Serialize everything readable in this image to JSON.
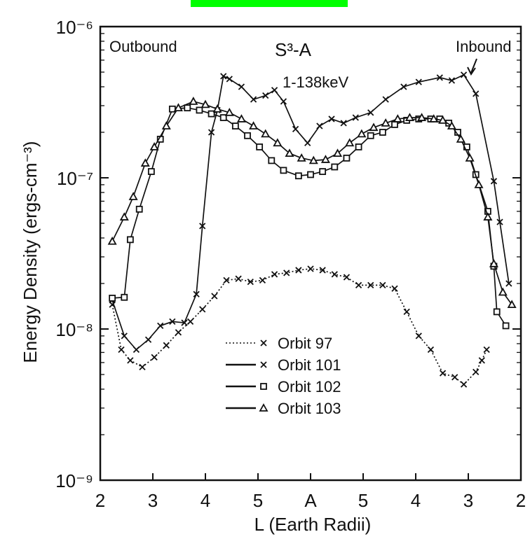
{
  "colors": {
    "top_bar": "#00ff00",
    "ink": "#111111"
  },
  "chart_data": {
    "type": "line",
    "title": "S³-A",
    "energy_range": "1-138keV",
    "xlabel": "L (Earth Radii)",
    "ylabel": "Energy Density (ergs-cm⁻³)",
    "x_scale": "position along orbit: outbound L 2→5, apogee A, inbound L 5→2",
    "xticks": [
      "2",
      "3",
      "4",
      "5",
      "A",
      "5",
      "4",
      "3",
      "2"
    ],
    "yscale": "log",
    "ylim": [
      1e-09,
      1e-06
    ],
    "yticks": [
      "10⁻⁹",
      "10⁻⁸",
      "10⁻⁷",
      "10⁻⁶"
    ],
    "annotations": {
      "outbound": "Outbound",
      "inbound": "Inbound"
    },
    "legend_position": "lower-middle",
    "series": [
      {
        "name": "Orbit 97",
        "marker": "x",
        "line": "dotted",
        "points": [
          [
            2.2,
            1.45e-08
          ],
          [
            2.35,
            7.3e-09
          ],
          [
            2.5,
            6.2e-09
          ],
          [
            2.7,
            5.6e-09
          ],
          [
            2.9,
            6.5e-09
          ],
          [
            3.1,
            7.8e-09
          ],
          [
            3.3,
            9.5e-09
          ],
          [
            3.5,
            1.12e-08
          ],
          [
            3.7,
            1.35e-08
          ],
          [
            3.9,
            1.65e-08
          ],
          [
            4.1,
            2.1e-08
          ],
          [
            4.3,
            2.15e-08
          ],
          [
            4.5,
            2.05e-08
          ],
          [
            4.7,
            2.1e-08
          ],
          [
            4.9,
            2.3e-08
          ],
          [
            5.1,
            2.35e-08
          ],
          [
            5.3,
            2.45e-08
          ],
          [
            5.5,
            2.5e-08
          ],
          [
            5.7,
            2.45e-08
          ],
          [
            5.9,
            2.3e-08
          ],
          [
            6.1,
            2.2e-08
          ],
          [
            6.3,
            1.95e-08
          ],
          [
            6.5,
            1.95e-08
          ],
          [
            6.7,
            1.95e-08
          ],
          [
            6.9,
            1.85e-08
          ],
          [
            7.1,
            1.3e-08
          ],
          [
            7.3,
            9e-09
          ],
          [
            7.5,
            7.3e-09
          ],
          [
            7.7,
            5.1e-09
          ],
          [
            7.9,
            4.8e-09
          ],
          [
            8.05,
            4.3e-09
          ],
          [
            8.25,
            5.2e-09
          ],
          [
            8.35,
            6.2e-09
          ],
          [
            8.43,
            7.3e-09
          ]
        ]
      },
      {
        "name": "Orbit 101",
        "marker": "x",
        "line": "solid",
        "points": [
          [
            2.2,
            1.55e-08
          ],
          [
            2.4,
            9e-09
          ],
          [
            2.6,
            7.3e-09
          ],
          [
            2.8,
            8.5e-09
          ],
          [
            3.0,
            1.05e-08
          ],
          [
            3.2,
            1.12e-08
          ],
          [
            3.4,
            1.1e-08
          ],
          [
            3.6,
            1.7e-08
          ],
          [
            3.7,
            4.8e-08
          ],
          [
            3.85,
            2e-07
          ],
          [
            3.95,
            2.8e-07
          ],
          [
            4.05,
            4.7e-07
          ],
          [
            4.15,
            4.5e-07
          ],
          [
            4.35,
            4e-07
          ],
          [
            4.55,
            3.3e-07
          ],
          [
            4.75,
            3.5e-07
          ],
          [
            4.9,
            3.8e-07
          ],
          [
            5.05,
            3.2e-07
          ],
          [
            5.25,
            2.1e-07
          ],
          [
            5.45,
            1.7e-07
          ],
          [
            5.65,
            2.2e-07
          ],
          [
            5.85,
            2.45e-07
          ],
          [
            6.05,
            2.3e-07
          ],
          [
            6.25,
            2.5e-07
          ],
          [
            6.5,
            2.7e-07
          ],
          [
            6.75,
            3.3e-07
          ],
          [
            7.05,
            4e-07
          ],
          [
            7.3,
            4.3e-07
          ],
          [
            7.65,
            4.6e-07
          ],
          [
            7.85,
            4.4e-07
          ],
          [
            8.05,
            4.8e-07
          ],
          [
            8.25,
            3.6e-07
          ],
          [
            8.55,
            9.5e-08
          ],
          [
            8.65,
            5.1e-08
          ],
          [
            8.8,
            2e-08
          ]
        ]
      },
      {
        "name": "Orbit 102",
        "marker": "square",
        "line": "solid",
        "points": [
          [
            2.2,
            1.6e-08
          ],
          [
            2.4,
            1.62e-08
          ],
          [
            2.5,
            3.9e-08
          ],
          [
            2.65,
            6.2e-08
          ],
          [
            2.85,
            1.1e-07
          ],
          [
            3.0,
            1.8e-07
          ],
          [
            3.2,
            2.85e-07
          ],
          [
            3.45,
            2.9e-07
          ],
          [
            3.65,
            2.8e-07
          ],
          [
            3.85,
            2.65e-07
          ],
          [
            4.05,
            2.5e-07
          ],
          [
            4.25,
            2.2e-07
          ],
          [
            4.45,
            1.9e-07
          ],
          [
            4.65,
            1.6e-07
          ],
          [
            4.85,
            1.3e-07
          ],
          [
            5.05,
            1.12e-07
          ],
          [
            5.3,
            1.03e-07
          ],
          [
            5.5,
            1.05e-07
          ],
          [
            5.7,
            1.1e-07
          ],
          [
            5.9,
            1.18e-07
          ],
          [
            6.1,
            1.35e-07
          ],
          [
            6.3,
            1.6e-07
          ],
          [
            6.5,
            1.9e-07
          ],
          [
            6.7,
            2e-07
          ],
          [
            6.9,
            2.25e-07
          ],
          [
            7.1,
            2.4e-07
          ],
          [
            7.3,
            2.45e-07
          ],
          [
            7.5,
            2.45e-07
          ],
          [
            7.65,
            2.45e-07
          ],
          [
            7.8,
            2.3e-07
          ],
          [
            7.95,
            2e-07
          ],
          [
            8.1,
            1.6e-07
          ],
          [
            8.25,
            1.05e-07
          ],
          [
            8.45,
            6e-08
          ],
          [
            8.55,
            2.6e-08
          ],
          [
            8.6,
            1.3e-08
          ],
          [
            8.75,
            1.05e-08
          ]
        ]
      },
      {
        "name": "Orbit 103",
        "marker": "triangle",
        "line": "solid",
        "points": [
          [
            2.2,
            3.8e-08
          ],
          [
            2.4,
            5.5e-08
          ],
          [
            2.55,
            7.5e-08
          ],
          [
            2.75,
            1.25e-07
          ],
          [
            2.9,
            1.6e-07
          ],
          [
            3.1,
            2.2e-07
          ],
          [
            3.3,
            2.9e-07
          ],
          [
            3.55,
            3.2e-07
          ],
          [
            3.75,
            3.05e-07
          ],
          [
            3.95,
            2.85e-07
          ],
          [
            4.15,
            2.7e-07
          ],
          [
            4.35,
            2.45e-07
          ],
          [
            4.55,
            2.2e-07
          ],
          [
            4.75,
            1.95e-07
          ],
          [
            4.95,
            1.7e-07
          ],
          [
            5.15,
            1.45e-07
          ],
          [
            5.35,
            1.35e-07
          ],
          [
            5.55,
            1.3e-07
          ],
          [
            5.75,
            1.32e-07
          ],
          [
            5.95,
            1.45e-07
          ],
          [
            6.15,
            1.7e-07
          ],
          [
            6.35,
            1.95e-07
          ],
          [
            6.55,
            2.15e-07
          ],
          [
            6.75,
            2.3e-07
          ],
          [
            6.95,
            2.45e-07
          ],
          [
            7.15,
            2.5e-07
          ],
          [
            7.35,
            2.5e-07
          ],
          [
            7.55,
            2.45e-07
          ],
          [
            7.7,
            2.4e-07
          ],
          [
            7.85,
            2.2e-07
          ],
          [
            8.0,
            1.8e-07
          ],
          [
            8.15,
            1.35e-07
          ],
          [
            8.3,
            9e-08
          ],
          [
            8.45,
            5.5e-08
          ],
          [
            8.55,
            2.7e-08
          ],
          [
            8.7,
            1.75e-08
          ],
          [
            8.85,
            1.45e-08
          ]
        ]
      }
    ]
  }
}
